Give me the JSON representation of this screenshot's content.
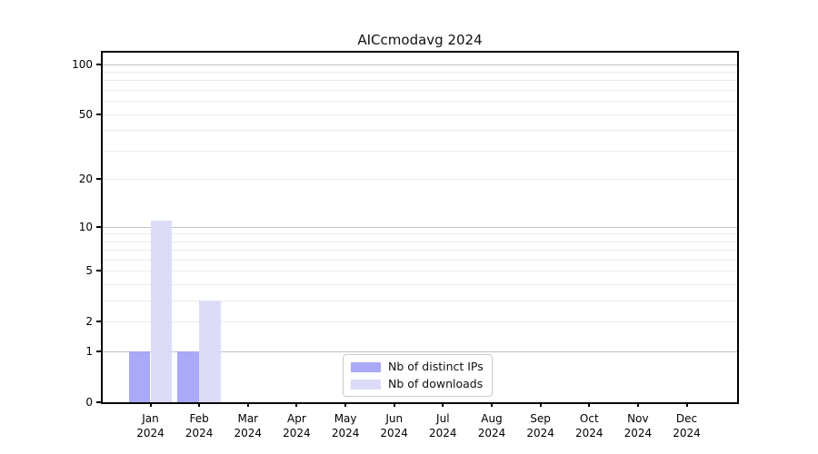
{
  "chart_data": {
    "type": "bar",
    "title": "AICcmodavg 2024",
    "categories": [
      "Jan",
      "Feb",
      "Mar",
      "Apr",
      "May",
      "Jun",
      "Jul",
      "Aug",
      "Sep",
      "Oct",
      "Nov",
      "Dec"
    ],
    "year_label": "2024",
    "series": [
      {
        "name": "Nb of distinct IPs",
        "color": "#a9a9f7",
        "values": [
          1,
          1,
          0,
          0,
          0,
          0,
          0,
          0,
          0,
          0,
          0,
          0
        ]
      },
      {
        "name": "Nb of downloads",
        "color": "#dcdcf9",
        "values": [
          11,
          3,
          0,
          0,
          0,
          0,
          0,
          0,
          0,
          0,
          0,
          0
        ]
      }
    ],
    "xlabel": "",
    "ylabel": "",
    "y_scale": "log1p",
    "ylim": [
      0,
      117
    ],
    "y_ticks": [
      0,
      1,
      2,
      5,
      10,
      20,
      50,
      100
    ],
    "grid": {
      "major": [
        1,
        10,
        100
      ],
      "minor": [
        2,
        3,
        4,
        5,
        6,
        7,
        8,
        9,
        20,
        30,
        40,
        50,
        60,
        70,
        80,
        90
      ]
    },
    "legend_position": "lower center",
    "colors": {
      "axis": "#000000",
      "major_grid": "#c2c2c2",
      "minor_grid": "#ebebeb"
    }
  }
}
